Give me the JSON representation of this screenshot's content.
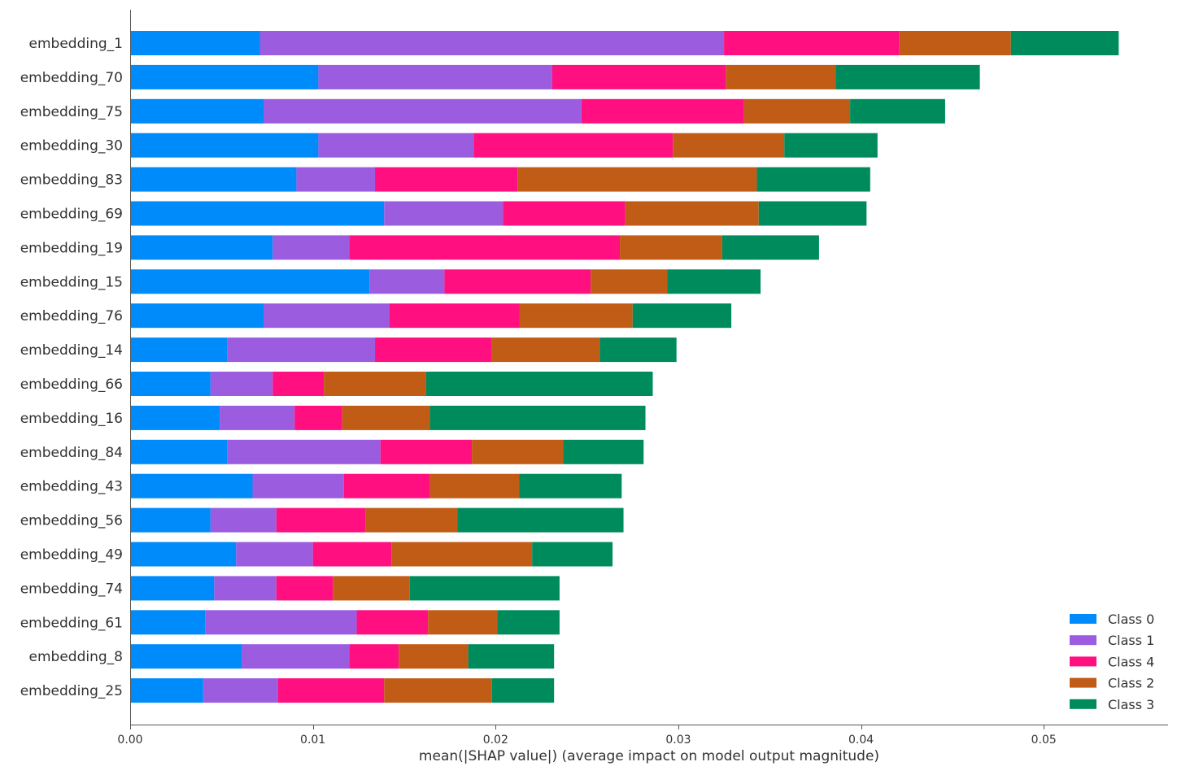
{
  "chart_data": {
    "type": "bar",
    "orientation": "horizontal",
    "stacked": true,
    "xlabel": "mean(|SHAP value|) (average impact on model output magnitude)",
    "xlim": [
      0,
      0.0568
    ],
    "xticks": [
      0.0,
      0.01,
      0.02,
      0.03,
      0.04,
      0.05
    ],
    "xtick_labels": [
      "0.00",
      "0.01",
      "0.02",
      "0.03",
      "0.04",
      "0.05"
    ],
    "grid": false,
    "legend_position": "lower-right",
    "categories": [
      "embedding_1",
      "embedding_70",
      "embedding_75",
      "embedding_30",
      "embedding_83",
      "embedding_69",
      "embedding_19",
      "embedding_15",
      "embedding_76",
      "embedding_14",
      "embedding_66",
      "embedding_16",
      "embedding_84",
      "embedding_43",
      "embedding_56",
      "embedding_49",
      "embedding_74",
      "embedding_61",
      "embedding_8",
      "embedding_25"
    ],
    "series": [
      {
        "name": "Class 0",
        "color": "#008bfb",
        "values": [
          0.0071,
          0.0103,
          0.0073,
          0.0103,
          0.0091,
          0.0139,
          0.0078,
          0.0131,
          0.0073,
          0.0053,
          0.0044,
          0.0049,
          0.0053,
          0.0067,
          0.0044,
          0.0058,
          0.0046,
          0.0041,
          0.0061,
          0.004
        ]
      },
      {
        "name": "Class 1",
        "color": "#9b5ce0",
        "values": [
          0.0254,
          0.0128,
          0.0174,
          0.0085,
          0.0043,
          0.0065,
          0.0042,
          0.0041,
          0.0069,
          0.0081,
          0.0034,
          0.0041,
          0.0084,
          0.005,
          0.0036,
          0.0042,
          0.0034,
          0.0083,
          0.0059,
          0.0041
        ]
      },
      {
        "name": "Class 4",
        "color": "#ff0f7f",
        "values": [
          0.0096,
          0.0095,
          0.0089,
          0.0109,
          0.0078,
          0.0067,
          0.0148,
          0.008,
          0.0071,
          0.0064,
          0.0028,
          0.0026,
          0.005,
          0.0047,
          0.0049,
          0.0043,
          0.0031,
          0.0039,
          0.0027,
          0.0058
        ]
      },
      {
        "name": "Class 2",
        "color": "#c15c17",
        "values": [
          0.0061,
          0.006,
          0.0058,
          0.0061,
          0.0131,
          0.0073,
          0.0056,
          0.0042,
          0.0062,
          0.0059,
          0.0056,
          0.0048,
          0.005,
          0.0049,
          0.005,
          0.0077,
          0.0042,
          0.0038,
          0.0038,
          0.0059
        ]
      },
      {
        "name": "Class 3",
        "color": "#008b5c",
        "values": [
          0.0059,
          0.0079,
          0.0052,
          0.0051,
          0.0062,
          0.0059,
          0.0053,
          0.0051,
          0.0054,
          0.0042,
          0.0124,
          0.0118,
          0.0044,
          0.0056,
          0.0091,
          0.0044,
          0.0082,
          0.0034,
          0.0047,
          0.0034
        ]
      }
    ]
  }
}
